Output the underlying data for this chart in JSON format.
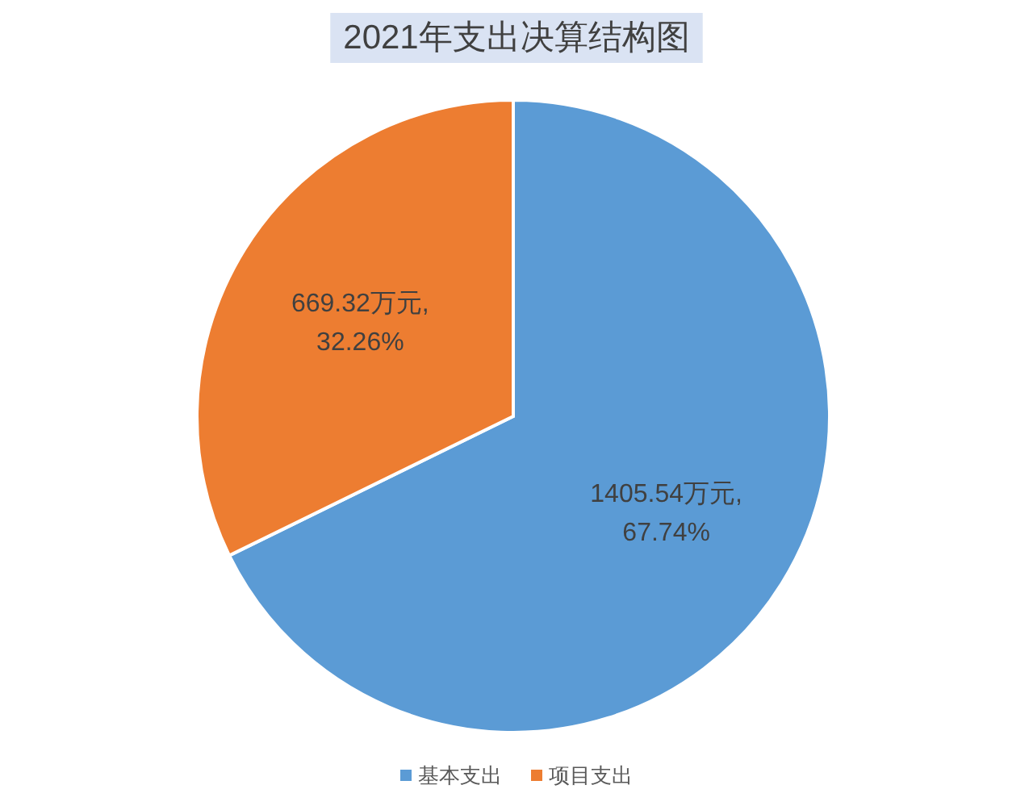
{
  "chart_data": {
    "type": "pie",
    "title": "2021年支出决算结构图",
    "categories": [
      "基本支出",
      "项目支出"
    ],
    "values": [
      1405.54,
      669.32
    ],
    "colors": [
      "#5b9bd5",
      "#ed7d31"
    ],
    "value_labels": [
      "1405.54万元,\n67.74%",
      "669.32万元,\n32.26%"
    ],
    "legend": "bottom"
  }
}
